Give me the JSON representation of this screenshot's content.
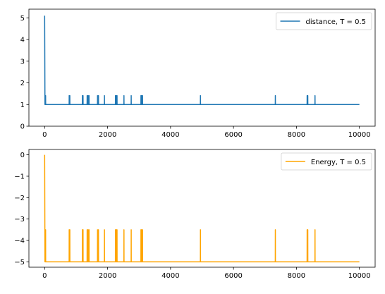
{
  "chart_data": [
    {
      "type": "line",
      "xlim": [
        -500,
        10500
      ],
      "ylim": [
        0,
        5.4
      ],
      "xticks": [
        0,
        2000,
        4000,
        6000,
        8000,
        10000
      ],
      "yticks": [
        0,
        1,
        2,
        3,
        4,
        5
      ],
      "legend": "top-right",
      "color": "#1f77b4",
      "series": [
        {
          "name": "distance, T = 0.5",
          "baseline": 1.0,
          "start": [
            [
              0,
              5.1
            ],
            [
              10,
              1.0
            ]
          ],
          "spikes": [
            [
              30,
              1.41
            ],
            [
              780,
              1.41
            ],
            [
              800,
              1.41
            ],
            [
              1200,
              1.41
            ],
            [
              1220,
              1.41
            ],
            [
              1350,
              1.41
            ],
            [
              1380,
              1.41
            ],
            [
              1410,
              1.41
            ],
            [
              1680,
              1.41
            ],
            [
              1710,
              1.41
            ],
            [
              1900,
              1.41
            ],
            [
              2250,
              1.41
            ],
            [
              2280,
              1.41
            ],
            [
              2300,
              1.41
            ],
            [
              2520,
              1.41
            ],
            [
              2750,
              1.41
            ],
            [
              3060,
              1.41
            ],
            [
              3080,
              1.41
            ],
            [
              3110,
              1.41
            ],
            [
              4950,
              1.41
            ],
            [
              7330,
              1.41
            ],
            [
              8340,
              1.41
            ],
            [
              8360,
              1.41
            ],
            [
              8590,
              1.41
            ]
          ],
          "x_end": 10000
        }
      ]
    },
    {
      "type": "line",
      "xlim": [
        -500,
        10500
      ],
      "ylim": [
        -5.25,
        0.25
      ],
      "xticks": [
        0,
        2000,
        4000,
        6000,
        8000,
        10000
      ],
      "yticks": [
        0,
        -1,
        -2,
        -3,
        -4,
        -5
      ],
      "legend": "top-right",
      "color": "#ffa500",
      "series": [
        {
          "name": "Energy, T = 0.5",
          "baseline": -5.0,
          "start": [
            [
              0,
              0.0
            ],
            [
              10,
              -5.0
            ]
          ],
          "spikes": [
            [
              30,
              -3.5
            ],
            [
              780,
              -3.5
            ],
            [
              800,
              -3.5
            ],
            [
              1200,
              -3.5
            ],
            [
              1220,
              -3.5
            ],
            [
              1350,
              -3.5
            ],
            [
              1380,
              -3.5
            ],
            [
              1410,
              -3.5
            ],
            [
              1680,
              -3.5
            ],
            [
              1710,
              -3.5
            ],
            [
              1900,
              -3.5
            ],
            [
              2250,
              -3.5
            ],
            [
              2280,
              -3.5
            ],
            [
              2300,
              -3.5
            ],
            [
              2520,
              -3.5
            ],
            [
              2750,
              -3.5
            ],
            [
              3060,
              -3.5
            ],
            [
              3080,
              -3.5
            ],
            [
              3110,
              -3.5
            ],
            [
              4950,
              -3.5
            ],
            [
              7330,
              -3.5
            ],
            [
              8340,
              -3.5
            ],
            [
              8360,
              -3.5
            ],
            [
              8590,
              -3.5
            ]
          ],
          "x_end": 10000
        }
      ]
    }
  ]
}
